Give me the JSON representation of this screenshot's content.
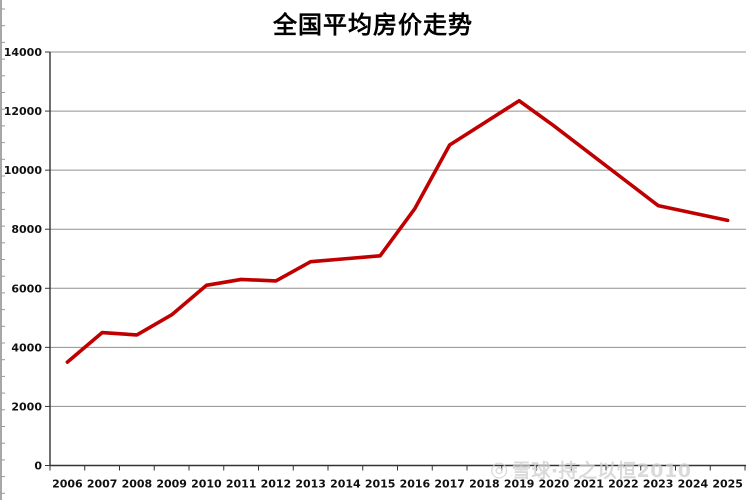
{
  "chart_data": {
    "type": "line",
    "title": "全国平均房价走势",
    "categories": [
      "2006",
      "2007",
      "2008",
      "2009",
      "2010",
      "2011",
      "2012",
      "2013",
      "2014",
      "2015",
      "2016",
      "2017",
      "2018",
      "2019",
      "2020",
      "2021",
      "2022",
      "2023",
      "2024",
      "2025"
    ],
    "values": [
      3500,
      4500,
      4420,
      5100,
      6100,
      6300,
      6250,
      6900,
      7000,
      7100,
      8700,
      10850,
      11600,
      12350,
      11500,
      10600,
      9700,
      8800,
      8550,
      8300
    ],
    "xlabel": "",
    "ylabel": "",
    "ylim": [
      0,
      14000
    ],
    "ytick_interval": 2000,
    "yticks": [
      0,
      2000,
      4000,
      6000,
      8000,
      10000,
      12000,
      14000
    ],
    "grid": true,
    "legend_position": "none",
    "line_color": "#c00000"
  },
  "watermark": {
    "logo_icon": "◎",
    "text": "雪球·持之以恒2010"
  },
  "colors": {
    "line": "#c00000",
    "gridline": "#909090",
    "axis": "#333333",
    "tick_label": "#111111",
    "title": "#000000",
    "watermark": "#d0d0d0",
    "background": "#ffffff"
  }
}
